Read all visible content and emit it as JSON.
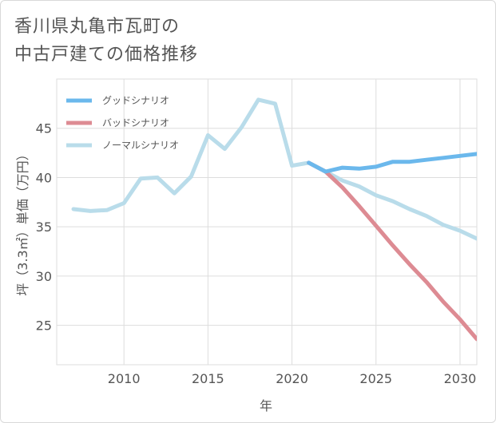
{
  "title_lines": [
    "香川県丸亀市瓦町の",
    "中古戸建ての価格推移"
  ],
  "chart_data": {
    "type": "line",
    "xlabel": "年",
    "ylabel": "坪（3.3㎡）単価（万円）",
    "xlim": [
      2006,
      2031
    ],
    "ylim": [
      21,
      50
    ],
    "x_ticks": [
      2010,
      2015,
      2020,
      2025,
      2030
    ],
    "y_ticks": [
      25,
      30,
      35,
      40,
      45
    ],
    "grid": true,
    "legend_position": "top-left",
    "series": [
      {
        "name": "グッドシナリオ",
        "color": "#6bb8ec",
        "x": [
          2021,
          2022,
          2023,
          2024,
          2025,
          2026,
          2027,
          2028,
          2029,
          2030,
          2031
        ],
        "values": [
          41.5,
          40.6,
          41.0,
          40.9,
          41.1,
          41.6,
          41.6,
          41.8,
          42.0,
          42.2,
          42.4
        ]
      },
      {
        "name": "バッドシナリオ",
        "color": "#dd8b93",
        "x": [
          2021,
          2022,
          2023,
          2024,
          2025,
          2026,
          2027,
          2028,
          2029,
          2030,
          2031
        ],
        "values": [
          41.5,
          40.6,
          39.0,
          37.1,
          35.1,
          33.1,
          31.2,
          29.4,
          27.4,
          25.6,
          23.6
        ]
      },
      {
        "name": "ノーマルシナリオ",
        "color": "#b9dcea",
        "x": [
          2007,
          2008,
          2009,
          2010,
          2011,
          2012,
          2013,
          2014,
          2015,
          2016,
          2017,
          2018,
          2019,
          2020,
          2021,
          2022,
          2023,
          2024,
          2025,
          2026,
          2027,
          2028,
          2029,
          2030,
          2031
        ],
        "values": [
          36.8,
          36.6,
          36.7,
          37.4,
          39.9,
          40.0,
          38.4,
          40.1,
          44.3,
          42.9,
          45.1,
          47.9,
          47.5,
          41.2,
          41.5,
          40.6,
          39.7,
          39.1,
          38.2,
          37.6,
          36.8,
          36.1,
          35.2,
          34.6,
          33.8
        ]
      }
    ]
  }
}
